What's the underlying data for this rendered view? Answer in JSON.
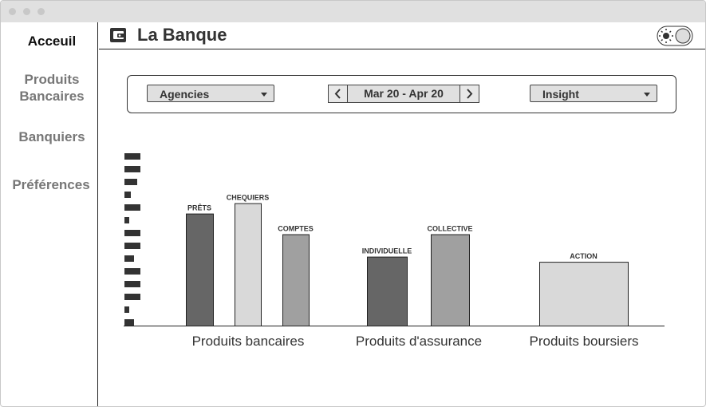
{
  "nav": {
    "items": [
      "Acceuil",
      "Produits Bancaires",
      "Banquiers",
      "Préférences"
    ]
  },
  "header": {
    "title": "La Banque"
  },
  "filters": {
    "scope": "Agencies",
    "date_range": "Mar 20 - Apr 20",
    "view": "Insight"
  },
  "chart_data": {
    "type": "bar",
    "ylim": [
      0,
      100
    ],
    "groups": [
      {
        "name": "Produits bancaires",
        "bars": [
          {
            "label": "PRÊTS",
            "value": 65,
            "color": "#666666"
          },
          {
            "label": "CHEQUIERS",
            "value": 71,
            "color": "#d9d9d9"
          },
          {
            "label": "COMPTES",
            "value": 53,
            "color": "#a0a0a0"
          }
        ]
      },
      {
        "name": "Produits d'assurance",
        "bars": [
          {
            "label": "INDIVIDUELLE",
            "value": 40,
            "color": "#666666"
          },
          {
            "label": "COLLECTIVE",
            "value": 53,
            "color": "#a0a0a0"
          }
        ]
      },
      {
        "name": "Produits boursiers",
        "bars": [
          {
            "label": "ACTION",
            "value": 37,
            "color": "#d9d9d9"
          }
        ]
      }
    ]
  }
}
